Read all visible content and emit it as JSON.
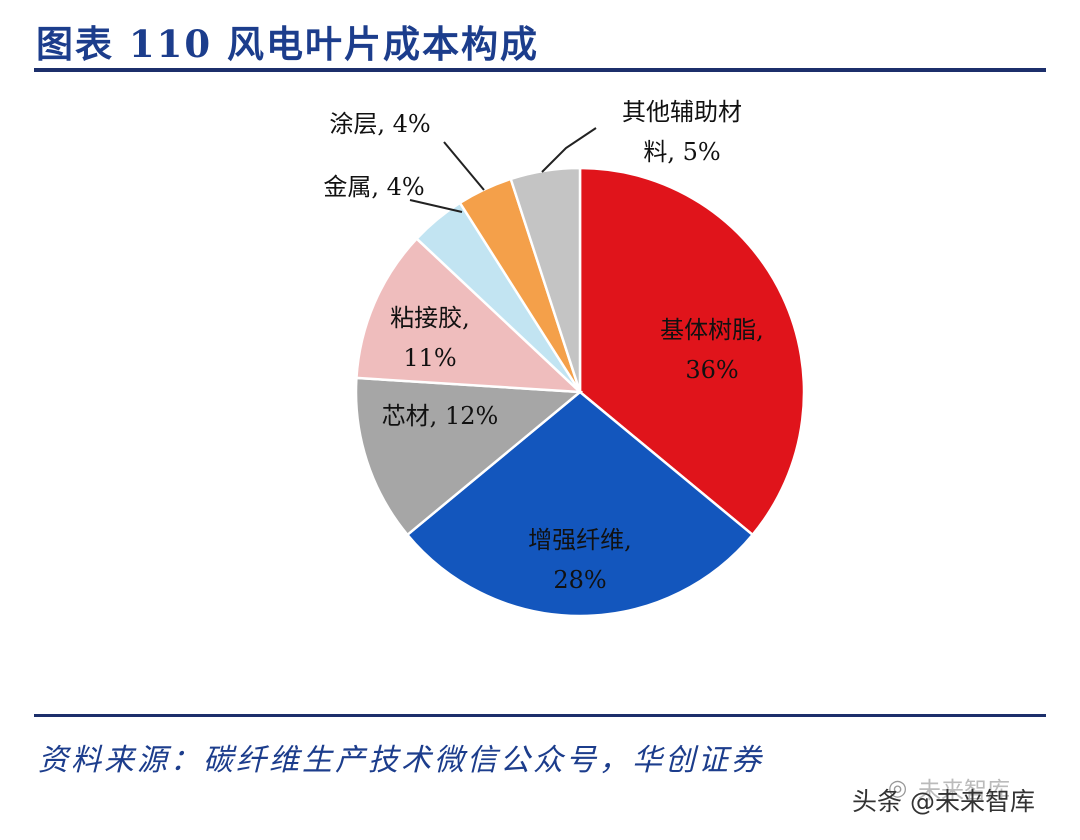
{
  "header": {
    "title": "图表 110  风电叶片成本构成"
  },
  "footer": {
    "source": "资料来源：碳纤维生产技术微信公众号，华创证券",
    "watermark": "头条 @未来智库",
    "watermark_ghost": "未来智库"
  },
  "chart_data": {
    "type": "pie",
    "title": "",
    "slices": [
      {
        "label": "基体树脂",
        "value": 36,
        "value_label": "36%",
        "color": "#e0141b"
      },
      {
        "label": "增强纤维",
        "value": 28,
        "value_label": "28%",
        "color": "#1356bd"
      },
      {
        "label": "芯材",
        "value": 12,
        "value_label": "12%",
        "color": "#a6a6a6"
      },
      {
        "label": "粘接胶",
        "value": 11,
        "value_label": "11%",
        "color": "#efbdbd"
      },
      {
        "label": "金属",
        "value": 4,
        "value_label": "4%",
        "color": "#c2e4f2"
      },
      {
        "label": "涂层",
        "value": 4,
        "value_label": "4%",
        "color": "#f4a04a"
      },
      {
        "label": "其他辅助材料",
        "value": 5,
        "value_label": "5%",
        "color": "#c4c4c4"
      }
    ],
    "start": "12 o'clock",
    "direction": "clockwise"
  }
}
